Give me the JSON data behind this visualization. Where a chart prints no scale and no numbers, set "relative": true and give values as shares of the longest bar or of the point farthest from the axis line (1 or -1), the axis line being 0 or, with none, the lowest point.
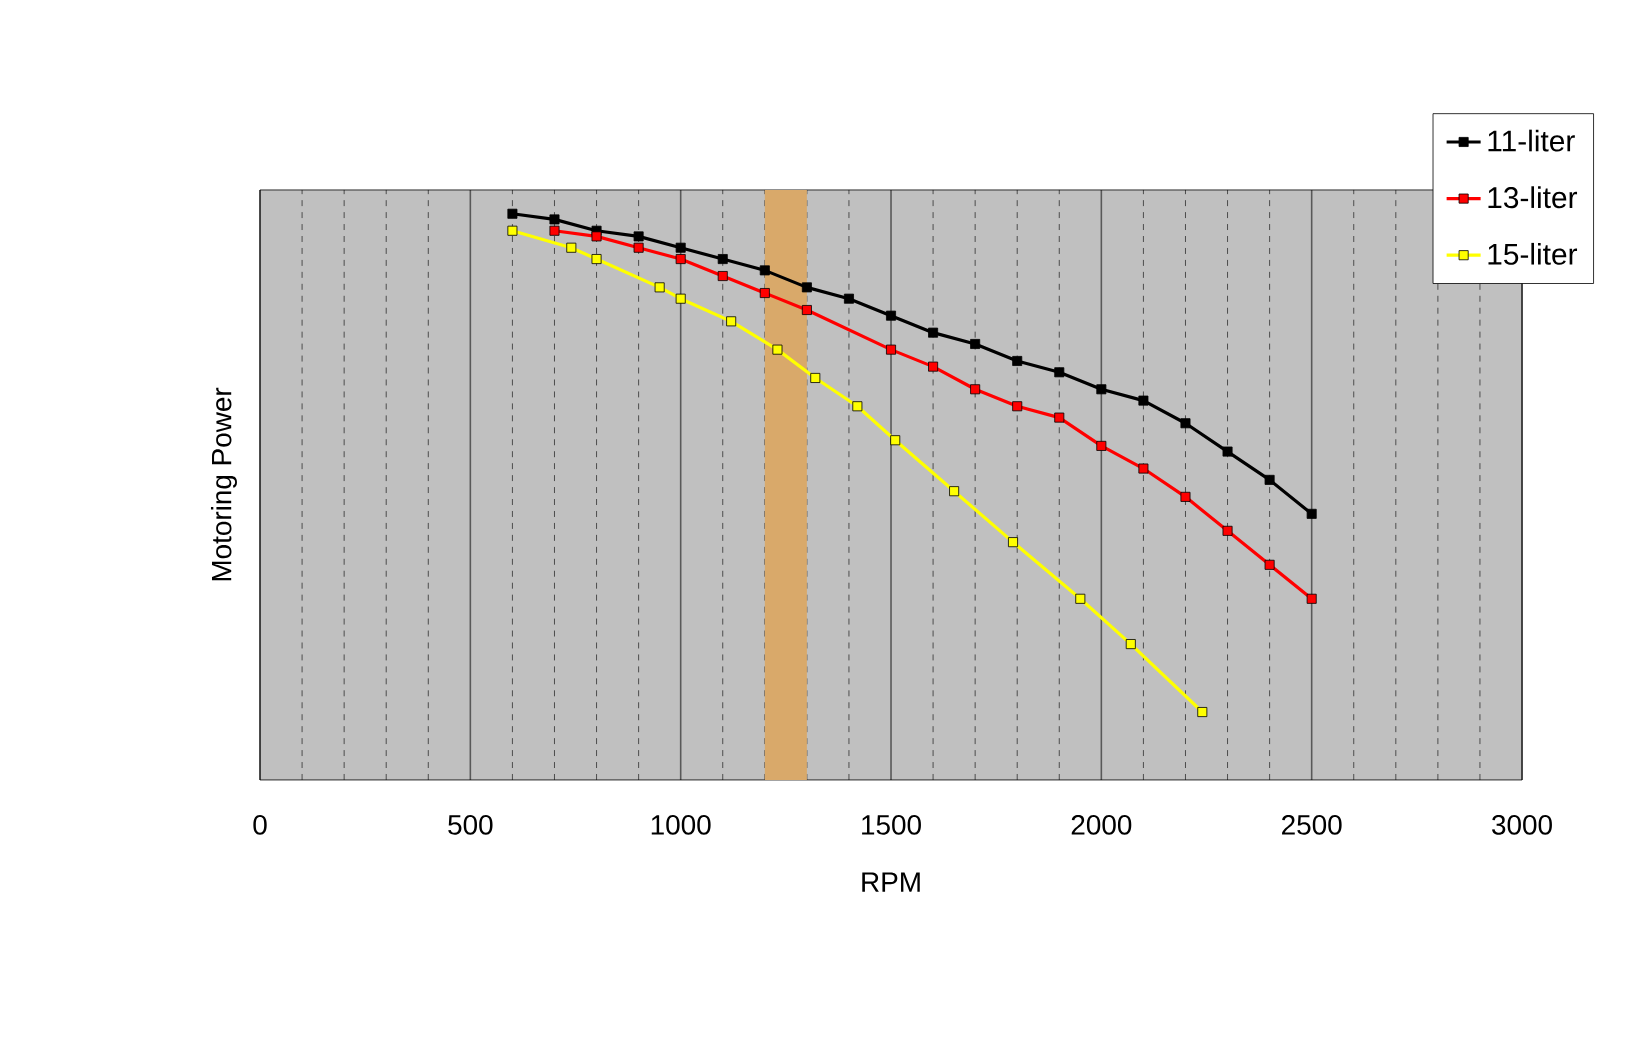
{
  "chart_data": {
    "type": "line",
    "xlabel": "RPM",
    "ylabel": "Motoring Power",
    "relative": true,
    "xlim": [
      0,
      3000
    ],
    "xticks": [
      0,
      500,
      1000,
      1500,
      2000,
      2500,
      3000
    ],
    "grid": "x",
    "legend": "top right",
    "marker": "square",
    "line_style": "solid",
    "bands": [
      {
        "axis": "x",
        "from": 1200,
        "to": 1300,
        "color": "#d9a96a"
      }
    ],
    "series": [
      {
        "name": "11-liter",
        "color": "#000000",
        "x": [
          600,
          700,
          800,
          900,
          1000,
          1100,
          1200,
          1300,
          1400,
          1500,
          1600,
          1700,
          1800,
          1900,
          2000,
          2100,
          2200,
          2300,
          2400,
          2500
        ],
        "values": [
          1.0,
          0.99,
          0.97,
          0.96,
          0.94,
          0.92,
          0.9,
          0.87,
          0.85,
          0.82,
          0.79,
          0.77,
          0.74,
          0.72,
          0.69,
          0.67,
          0.63,
          0.58,
          0.53,
          0.47
        ]
      },
      {
        "name": "13-liter",
        "color": "#ff0000",
        "x": [
          700,
          800,
          900,
          1000,
          1100,
          1200,
          1300,
          1500,
          1600,
          1700,
          1800,
          1900,
          2000,
          2100,
          2200,
          2300,
          2400,
          2500
        ],
        "values": [
          0.97,
          0.96,
          0.94,
          0.92,
          0.89,
          0.86,
          0.83,
          0.76,
          0.73,
          0.69,
          0.66,
          0.64,
          0.59,
          0.55,
          0.5,
          0.44,
          0.38,
          0.32
        ]
      },
      {
        "name": "15-liter",
        "color": "#ffff00",
        "x": [
          600,
          740,
          800,
          950,
          1000,
          1120,
          1230,
          1320,
          1420,
          1510,
          1650,
          1790,
          1950,
          2070,
          2240
        ],
        "values": [
          0.97,
          0.94,
          0.92,
          0.87,
          0.85,
          0.81,
          0.76,
          0.71,
          0.66,
          0.6,
          0.51,
          0.42,
          0.32,
          0.24,
          0.12
        ]
      }
    ]
  }
}
